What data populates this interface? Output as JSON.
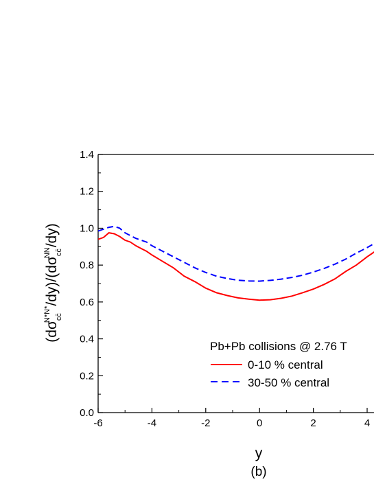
{
  "chart_data": {
    "type": "line",
    "xlabel": "y",
    "ylabel": {
      "prefix": "(dσ",
      "sub1": "cc̄",
      "sup1": "N*N*",
      "middle": "/dy)/(dσ",
      "sub2": "cc̄",
      "sup2": "NN",
      "suffix": "/dy)"
    },
    "panel_label": "(b)",
    "xlim": [
      -6,
      4.3
    ],
    "ylim": [
      0.0,
      1.4
    ],
    "x_ticks": [
      -6,
      -4,
      -2,
      0,
      2,
      4
    ],
    "x_tick_labels": [
      "-6",
      "-4",
      "-2",
      "0",
      "2",
      "4"
    ],
    "y_ticks": [
      0.0,
      0.2,
      0.4,
      0.6,
      0.8,
      1.0,
      1.2,
      1.4
    ],
    "y_tick_labels": [
      "0.0",
      "0.2",
      "0.4",
      "0.6",
      "0.8",
      "1.0",
      "1.2",
      "1.4"
    ],
    "legend_title": "Pb+Pb collisions @ 2.76 T",
    "legend_position": "bottom-right",
    "series": [
      {
        "name": "0-10 % central",
        "color": "#ff0000",
        "dash": "solid",
        "x": [
          -6.0,
          -5.8,
          -5.6,
          -5.4,
          -5.2,
          -5.0,
          -4.8,
          -4.6,
          -4.4,
          -4.2,
          -4.0,
          -3.6,
          -3.2,
          -2.8,
          -2.4,
          -2.0,
          -1.6,
          -1.2,
          -0.8,
          -0.4,
          0.0,
          0.4,
          0.8,
          1.2,
          1.6,
          2.0,
          2.4,
          2.8,
          3.2,
          3.6,
          4.0,
          4.3
        ],
        "y": [
          0.94,
          0.95,
          0.975,
          0.97,
          0.955,
          0.935,
          0.925,
          0.905,
          0.89,
          0.875,
          0.855,
          0.82,
          0.785,
          0.74,
          0.71,
          0.675,
          0.65,
          0.635,
          0.622,
          0.615,
          0.61,
          0.612,
          0.62,
          0.632,
          0.65,
          0.67,
          0.695,
          0.725,
          0.765,
          0.8,
          0.845,
          0.875
        ]
      },
      {
        "name": "30-50 % central",
        "color": "#0000ff",
        "dash": "dashed",
        "x": [
          -6.0,
          -5.8,
          -5.6,
          -5.4,
          -5.2,
          -5.0,
          -4.8,
          -4.6,
          -4.4,
          -4.2,
          -4.0,
          -3.6,
          -3.2,
          -2.8,
          -2.4,
          -2.0,
          -1.6,
          -1.2,
          -0.8,
          -0.4,
          0.0,
          0.4,
          0.8,
          1.2,
          1.6,
          2.0,
          2.4,
          2.8,
          3.2,
          3.6,
          4.0,
          4.3
        ],
        "y": [
          0.985,
          0.995,
          1.005,
          1.01,
          1.0,
          0.975,
          0.96,
          0.945,
          0.935,
          0.925,
          0.905,
          0.875,
          0.845,
          0.815,
          0.785,
          0.76,
          0.74,
          0.727,
          0.718,
          0.714,
          0.713,
          0.717,
          0.724,
          0.733,
          0.745,
          0.762,
          0.782,
          0.805,
          0.832,
          0.865,
          0.895,
          0.92
        ]
      }
    ]
  }
}
